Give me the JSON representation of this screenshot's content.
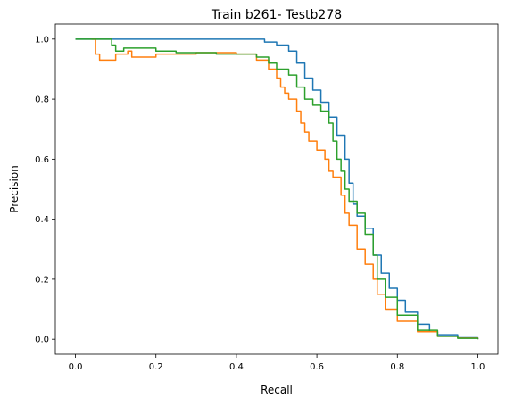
{
  "chart_data": {
    "type": "line",
    "title": "Train b261- Testb278",
    "xlabel": "Recall",
    "ylabel": "Precision",
    "xlim": [
      -0.05,
      1.05
    ],
    "ylim": [
      -0.05,
      1.05
    ],
    "xticks": [
      0.0,
      0.2,
      0.4,
      0.6,
      0.8,
      1.0
    ],
    "xtick_labels": [
      "0.0",
      "0.2",
      "0.4",
      "0.6",
      "0.8",
      "1.0"
    ],
    "yticks": [
      0.0,
      0.2,
      0.4,
      0.6,
      0.8,
      1.0
    ],
    "ytick_labels": [
      "0.0",
      "0.2",
      "0.4",
      "0.6",
      "0.8",
      "1.0"
    ],
    "grid": false,
    "legend": "none",
    "series": [
      {
        "color": "#1f77b4",
        "x": [
          0.0,
          0.1,
          0.2,
          0.3,
          0.4,
          0.44,
          0.47,
          0.5,
          0.53,
          0.55,
          0.57,
          0.59,
          0.61,
          0.63,
          0.65,
          0.67,
          0.68,
          0.69,
          0.7,
          0.72,
          0.74,
          0.76,
          0.78,
          0.8,
          0.82,
          0.85,
          0.88,
          0.9,
          0.95,
          1.0
        ],
        "y": [
          1.0,
          1.0,
          1.0,
          1.0,
          1.0,
          1.0,
          0.99,
          0.98,
          0.96,
          0.92,
          0.87,
          0.83,
          0.79,
          0.74,
          0.68,
          0.6,
          0.52,
          0.45,
          0.41,
          0.37,
          0.28,
          0.22,
          0.17,
          0.13,
          0.09,
          0.05,
          0.025,
          0.015,
          0.005,
          0.0
        ]
      },
      {
        "color": "#ff7f0e",
        "x": [
          0.04,
          0.05,
          0.06,
          0.1,
          0.13,
          0.14,
          0.2,
          0.25,
          0.3,
          0.35,
          0.4,
          0.45,
          0.48,
          0.5,
          0.51,
          0.52,
          0.53,
          0.55,
          0.56,
          0.57,
          0.58,
          0.6,
          0.62,
          0.63,
          0.64,
          0.66,
          0.67,
          0.68,
          0.7,
          0.72,
          0.74,
          0.75,
          0.77,
          0.8,
          0.85,
          0.9,
          0.95,
          1.0
        ],
        "y": [
          1.0,
          0.95,
          0.93,
          0.95,
          0.96,
          0.94,
          0.95,
          0.95,
          0.955,
          0.955,
          0.95,
          0.93,
          0.9,
          0.87,
          0.84,
          0.82,
          0.8,
          0.76,
          0.72,
          0.69,
          0.66,
          0.63,
          0.6,
          0.56,
          0.54,
          0.48,
          0.42,
          0.38,
          0.3,
          0.25,
          0.2,
          0.15,
          0.1,
          0.06,
          0.025,
          0.01,
          0.004,
          0.0
        ]
      },
      {
        "color": "#2ca02c",
        "x": [
          0.0,
          0.05,
          0.08,
          0.09,
          0.1,
          0.12,
          0.15,
          0.2,
          0.25,
          0.3,
          0.35,
          0.4,
          0.45,
          0.48,
          0.5,
          0.53,
          0.55,
          0.57,
          0.59,
          0.61,
          0.63,
          0.64,
          0.65,
          0.66,
          0.67,
          0.68,
          0.7,
          0.72,
          0.74,
          0.75,
          0.77,
          0.8,
          0.85,
          0.9,
          0.95,
          1.0
        ],
        "y": [
          1.0,
          1.0,
          1.0,
          0.98,
          0.96,
          0.97,
          0.97,
          0.96,
          0.955,
          0.955,
          0.95,
          0.95,
          0.94,
          0.92,
          0.9,
          0.88,
          0.84,
          0.8,
          0.78,
          0.76,
          0.72,
          0.66,
          0.6,
          0.56,
          0.5,
          0.46,
          0.42,
          0.35,
          0.28,
          0.2,
          0.14,
          0.08,
          0.03,
          0.01,
          0.003,
          0.0
        ]
      }
    ]
  }
}
